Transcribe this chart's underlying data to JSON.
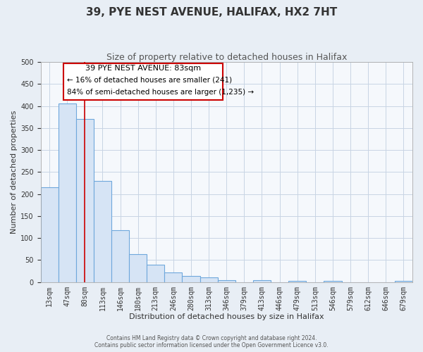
{
  "title": "39, PYE NEST AVENUE, HALIFAX, HX2 7HT",
  "subtitle": "Size of property relative to detached houses in Halifax",
  "xlabel": "Distribution of detached houses by size in Halifax",
  "ylabel": "Number of detached properties",
  "bin_labels": [
    "13sqm",
    "47sqm",
    "80sqm",
    "113sqm",
    "146sqm",
    "180sqm",
    "213sqm",
    "246sqm",
    "280sqm",
    "313sqm",
    "346sqm",
    "379sqm",
    "413sqm",
    "446sqm",
    "479sqm",
    "513sqm",
    "546sqm",
    "579sqm",
    "612sqm",
    "646sqm",
    "679sqm"
  ],
  "bar_heights": [
    215,
    405,
    370,
    230,
    118,
    63,
    40,
    22,
    14,
    10,
    4,
    0,
    5,
    0,
    3,
    0,
    3,
    0,
    0,
    0,
    2
  ],
  "bar_color": "#d6e4f5",
  "bar_edge_color": "#6fa8dc",
  "highlight_line_x_label": "80sqm",
  "highlight_line_color": "#cc0000",
  "annotation_text_line1": "39 PYE NEST AVENUE: 83sqm",
  "annotation_text_line2": "← 16% of detached houses are smaller (241)",
  "annotation_text_line3": "84% of semi-detached houses are larger (1,235) →",
  "annotation_box_color": "#cc0000",
  "ylim": [
    0,
    500
  ],
  "yticks": [
    0,
    50,
    100,
    150,
    200,
    250,
    300,
    350,
    400,
    450,
    500
  ],
  "footnote_line1": "Contains HM Land Registry data © Crown copyright and database right 2024.",
  "footnote_line2": "Contains public sector information licensed under the Open Government Licence v3.0.",
  "background_color": "#e8eef5",
  "plot_bg_color": "#f5f8fc",
  "grid_color": "#c8d4e4",
  "title_fontsize": 11,
  "subtitle_fontsize": 9,
  "axis_label_fontsize": 8,
  "tick_fontsize": 7,
  "footnote_fontsize": 5.5
}
